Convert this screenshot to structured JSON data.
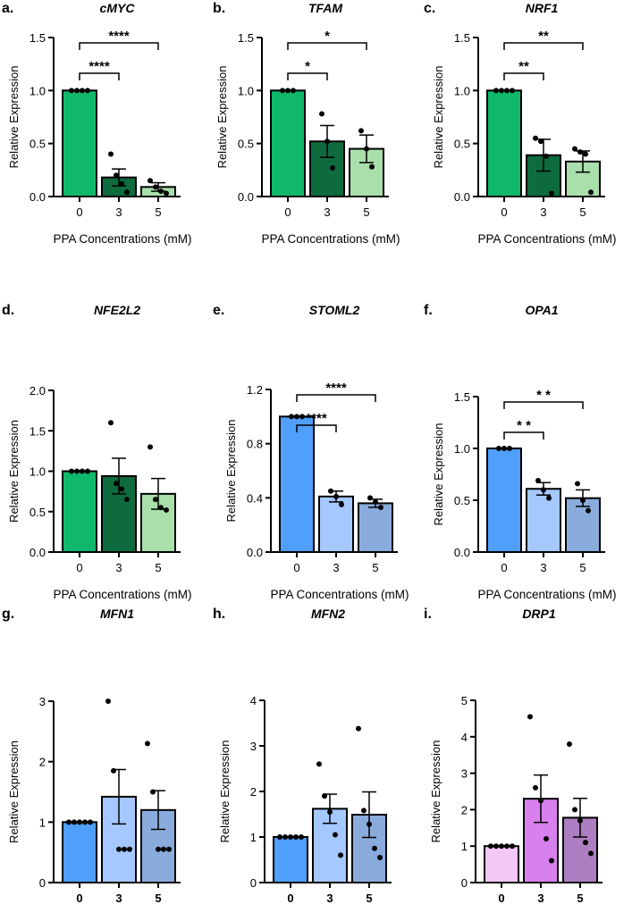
{
  "colors": {
    "green_dark": "#10b86c",
    "green_mid": "#0e6b3e",
    "green_light": "#a9dfaa",
    "blue_dark": "#4f9ffb",
    "blue_light": "#a5c8ff",
    "blue_mid": "#8aacdd",
    "purple_light": "#f1c8f6",
    "purple_mid": "#d880ed",
    "purple_dark": "#ad7ec1"
  },
  "chart_data": [
    {
      "panel": "a.",
      "title": "cMYC",
      "type": "bar",
      "categories": [
        "0",
        "3",
        "5"
      ],
      "values": [
        1.0,
        0.18,
        0.09
      ],
      "sem": [
        0,
        0.08,
        0.04
      ],
      "points": [
        [
          1,
          1,
          1,
          1
        ],
        [
          0.4,
          0.2,
          0.12,
          0.04
        ],
        [
          0.15,
          0.09,
          0.05,
          0.03
        ]
      ],
      "ylim": [
        0,
        1.5
      ],
      "yticks": [
        "0.0",
        "0.5",
        "1.0",
        "1.5"
      ],
      "ylabel": "Relative Expression",
      "xlabel": "PPA Concentrations (mM)",
      "colors": [
        "green_dark",
        "green_mid",
        "green_light"
      ],
      "brackets": [
        {
          "from": 0,
          "to": 1,
          "label": "****"
        },
        {
          "from": 0,
          "to": 2,
          "label": "****"
        }
      ]
    },
    {
      "panel": "b.",
      "title": "TFAM",
      "type": "bar",
      "categories": [
        "0",
        "3",
        "5"
      ],
      "values": [
        1.0,
        0.52,
        0.45
      ],
      "sem": [
        0,
        0.15,
        0.13
      ],
      "points": [
        [
          1,
          1,
          1
        ],
        [
          0.78,
          0.52,
          0.27
        ],
        [
          0.62,
          0.45,
          0.28
        ]
      ],
      "ylim": [
        0,
        1.5
      ],
      "yticks": [
        "0.0",
        "0.5",
        "1.0",
        "1.5"
      ],
      "ylabel": "Relative Expression",
      "xlabel": "PPA Concentrations (mM)",
      "colors": [
        "green_dark",
        "green_mid",
        "green_light"
      ],
      "brackets": [
        {
          "from": 0,
          "to": 1,
          "label": "*"
        },
        {
          "from": 0,
          "to": 2,
          "label": "*"
        }
      ]
    },
    {
      "panel": "c.",
      "title": "NRF1",
      "type": "bar",
      "categories": [
        "0",
        "3",
        "5"
      ],
      "values": [
        1.0,
        0.39,
        0.33
      ],
      "sem": [
        0,
        0.15,
        0.1
      ],
      "points": [
        [
          1,
          1,
          1,
          1
        ],
        [
          0.55,
          0.52,
          0.38,
          0.03
        ],
        [
          0.45,
          0.42,
          0.4,
          0.04
        ]
      ],
      "ylim": [
        0,
        1.5
      ],
      "yticks": [
        "0.0",
        "0.5",
        "1.0",
        "1.5"
      ],
      "ylabel": "Relative Expression",
      "xlabel": "PPA Concentrations (mM)",
      "colors": [
        "green_dark",
        "green_mid",
        "green_light"
      ],
      "brackets": [
        {
          "from": 0,
          "to": 1,
          "label": "**"
        },
        {
          "from": 0,
          "to": 2,
          "label": "**"
        }
      ]
    },
    {
      "panel": "d.",
      "title": "NFE2L2",
      "type": "bar",
      "categories": [
        "0",
        "3",
        "5"
      ],
      "values": [
        1.0,
        0.94,
        0.72
      ],
      "sem": [
        0,
        0.22,
        0.19
      ],
      "points": [
        [
          1,
          1,
          1,
          1
        ],
        [
          1.6,
          0.85,
          0.78,
          0.65
        ],
        [
          1.3,
          0.65,
          0.55,
          0.52
        ]
      ],
      "ylim": [
        0,
        2.0
      ],
      "yticks": [
        "0.0",
        "0.5",
        "1.0",
        "1.5",
        "2.0"
      ],
      "ylabel": "Relative Expression",
      "xlabel": "PPA Concentrations (mM)",
      "colors": [
        "green_dark",
        "green_mid",
        "green_light"
      ],
      "brackets": []
    },
    {
      "panel": "e.",
      "title": "STOML2",
      "type": "bar",
      "categories": [
        "0",
        "3",
        "5"
      ],
      "values": [
        1.0,
        0.41,
        0.36
      ],
      "sem": [
        0,
        0.04,
        0.03
      ],
      "points": [
        [
          1,
          1,
          1
        ],
        [
          0.45,
          0.41,
          0.35
        ],
        [
          0.4,
          0.37,
          0.33
        ]
      ],
      "ylim": [
        0,
        1.2
      ],
      "yticks": [
        "0.0",
        "0.4",
        "0.8",
        "1.2"
      ],
      "ylabel": "Relative Expression",
      "xlabel": "PPA Concentrations (mM)",
      "colors": [
        "blue_dark",
        "blue_light",
        "blue_mid"
      ],
      "brackets": [
        {
          "from": 0,
          "to": 1,
          "label": "****"
        },
        {
          "from": 0,
          "to": 2,
          "label": "****"
        }
      ]
    },
    {
      "panel": "f.",
      "title": "OPA1",
      "type": "bar",
      "categories": [
        "0",
        "3",
        "5"
      ],
      "values": [
        1.0,
        0.61,
        0.52
      ],
      "sem": [
        0,
        0.06,
        0.08
      ],
      "points": [
        [
          1,
          1,
          1
        ],
        [
          0.69,
          0.6,
          0.52
        ],
        [
          0.66,
          0.5,
          0.4
        ]
      ],
      "ylim": [
        0,
        1.5
      ],
      "yticks": [
        "0.0",
        "0.5",
        "1.0",
        "1.5"
      ],
      "ylabel": "Relative Expression",
      "xlabel": "PPA Concentrations (mM)",
      "colors": [
        "blue_dark",
        "blue_light",
        "blue_mid"
      ],
      "brackets": [
        {
          "from": 0,
          "to": 1,
          "label": "* *"
        },
        {
          "from": 0,
          "to": 2,
          "label": "* *"
        }
      ]
    },
    {
      "panel": "g.",
      "title": "MFN1",
      "type": "bar",
      "categories": [
        "0",
        "3",
        "5"
      ],
      "values": [
        1.0,
        1.42,
        1.2
      ],
      "sem": [
        0,
        0.45,
        0.32
      ],
      "points": [
        [
          1,
          1,
          1,
          1,
          1
        ],
        [
          3.0,
          1.85,
          0.55,
          0.55,
          0.55
        ],
        [
          2.3,
          1.5,
          0.55,
          0.55,
          0.55
        ]
      ],
      "ylim": [
        0,
        3
      ],
      "yticks": [
        "0",
        "1",
        "2",
        "3"
      ],
      "ylabel": "Relative Expression",
      "xlabel": "PPA Concentrations (mM)",
      "colors": [
        "blue_dark",
        "blue_light",
        "blue_mid"
      ],
      "brackets": []
    },
    {
      "panel": "h.",
      "title": "MFN2",
      "type": "bar",
      "categories": [
        "0",
        "3",
        "5"
      ],
      "values": [
        1.0,
        1.62,
        1.49
      ],
      "sem": [
        0,
        0.32,
        0.5
      ],
      "points": [
        [
          1,
          1,
          1,
          1,
          1
        ],
        [
          2.6,
          1.9,
          1.55,
          1.05,
          0.6
        ],
        [
          3.38,
          1.58,
          1.28,
          0.75,
          0.55
        ]
      ],
      "ylim": [
        0,
        4
      ],
      "yticks": [
        "0",
        "1",
        "2",
        "3",
        "4"
      ],
      "ylabel": "Relative Expression",
      "xlabel": "PPA Concentrations (mM)",
      "colors": [
        "blue_dark",
        "blue_light",
        "blue_mid"
      ],
      "brackets": []
    },
    {
      "panel": "i.",
      "title": "DRP1",
      "type": "bar",
      "categories": [
        "0",
        "3",
        "5"
      ],
      "values": [
        1.0,
        2.3,
        1.78
      ],
      "sem": [
        0,
        0.65,
        0.53
      ],
      "points": [
        [
          1,
          1,
          1,
          1,
          1
        ],
        [
          4.55,
          2.6,
          2.25,
          1.2,
          0.6
        ],
        [
          3.8,
          2.0,
          1.7,
          1.1,
          0.8
        ]
      ],
      "ylim": [
        0,
        5
      ],
      "yticks": [
        "0",
        "1",
        "2",
        "3",
        "4",
        "5"
      ],
      "ylabel": "Relative Expression",
      "xlabel": "PPA Concentrations (mM)",
      "colors": [
        "purple_light",
        "purple_mid",
        "purple_dark"
      ],
      "brackets": []
    }
  ]
}
